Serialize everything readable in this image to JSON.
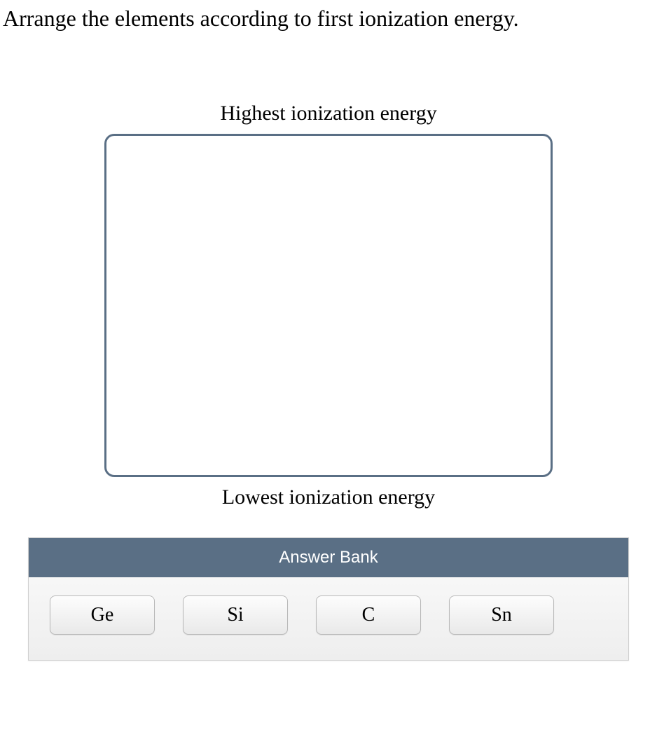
{
  "question": {
    "prompt": "Arrange the elements according to first ionization energy."
  },
  "ranking": {
    "top_label": "Highest ionization energy",
    "bottom_label": "Lowest ionization energy",
    "dropzone_border_color": "#5a6f85",
    "dropzone_bg": "#ffffff"
  },
  "answer_bank": {
    "header": "Answer Bank",
    "header_bg": "#5a6f85",
    "header_text_color": "#ffffff",
    "items": [
      {
        "label": "Ge"
      },
      {
        "label": "Si"
      },
      {
        "label": "C"
      },
      {
        "label": "Sn"
      }
    ],
    "tile_bg_top": "#fdfdfd",
    "tile_bg_bottom": "#e9e9e9",
    "tile_border": "#b8b8b8"
  },
  "colors": {
    "page_bg": "#ffffff",
    "text": "#000000"
  }
}
